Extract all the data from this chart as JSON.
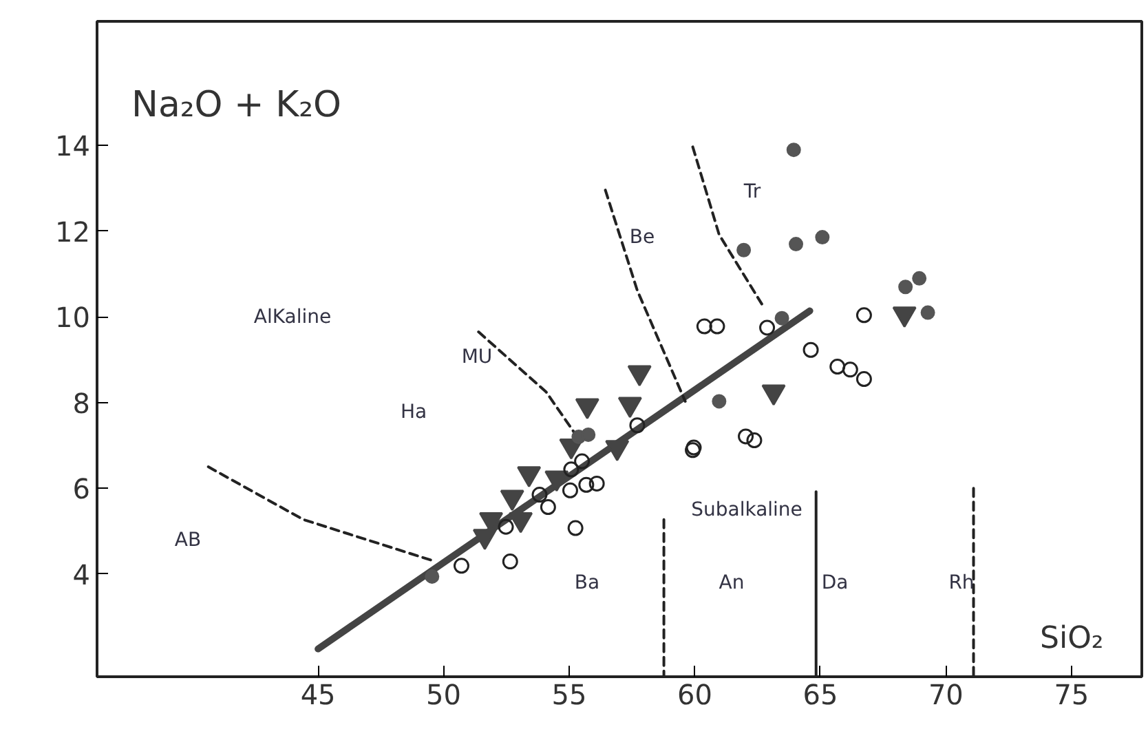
{
  "chart_data": {
    "type": "scatter",
    "xlabel": "SiO₂",
    "ylabel": "Na₂O + K₂O",
    "xlim": [
      36.2,
      77.8
    ],
    "ylim": [
      1.6,
      16.9
    ],
    "xticks": [
      45,
      50,
      55,
      60,
      65,
      70,
      75
    ],
    "yticks": [
      4,
      6,
      8,
      10,
      12,
      14
    ],
    "grid": false,
    "series": [
      {
        "marker": "circle",
        "color": "#555555",
        "x": [
          63.94,
          61.95,
          64.03,
          65.08,
          63.47,
          60.97,
          68.39,
          68.94,
          69.28,
          55.38,
          55.76,
          49.54
        ],
        "values": [
          13.9,
          11.56,
          11.7,
          11.86,
          9.97,
          8.03,
          10.7,
          10.9,
          10.1,
          7.2,
          7.25,
          3.94
        ]
      },
      {
        "marker": "triangle",
        "color": "#444444",
        "x": [
          55.72,
          57.42,
          57.8,
          55.08,
          56.91,
          53.4,
          54.5,
          52.73,
          53.07,
          51.89,
          51.64,
          63.14,
          68.35
        ],
        "values": [
          7.93,
          7.96,
          8.7,
          6.99,
          6.95,
          6.34,
          6.24,
          5.79,
          5.27,
          5.27,
          4.88,
          8.25,
          10.07
        ]
      },
      {
        "marker": "circle_open",
        "color": "#222222",
        "x": [
          57.71,
          59.96,
          55.51,
          55.08,
          55.68,
          56.1,
          55.04,
          53.82,
          54.16,
          52.48,
          55.25,
          50.71,
          52.65,
          60.38,
          60.89,
          62.88,
          66.74,
          64.62,
          65.68,
          66.19,
          62.03,
          62.37,
          59.92,
          66.74
        ],
        "values": [
          7.47,
          6.95,
          6.63,
          6.44,
          6.08,
          6.11,
          5.95,
          5.85,
          5.56,
          5.1,
          5.07,
          4.19,
          4.29,
          9.78,
          9.78,
          9.75,
          10.04,
          9.23,
          8.84,
          8.77,
          7.21,
          7.12,
          6.89,
          8.55
        ]
      },
      {
        "type": "line",
        "line_style": "solid",
        "color": "#444444",
        "x": [
          45.0,
          64.58
        ],
        "values": [
          2.25,
          10.14
        ]
      },
      {
        "type": "line",
        "line_style": "dashed",
        "color": "#222222",
        "x": [
          40.63,
          44.41,
          49.62
        ],
        "values": [
          6.5,
          5.27,
          4.3
        ]
      },
      {
        "type": "line",
        "line_style": "dashed",
        "color": "#222222",
        "x": [
          51.39,
          54.08,
          55.38
        ],
        "values": [
          9.65,
          8.25,
          7.15
        ]
      },
      {
        "type": "line",
        "line_style": "dashed",
        "color": "#222222",
        "x": [
          56.44,
          57.71,
          59.62
        ],
        "values": [
          12.96,
          10.62,
          8.03
        ]
      },
      {
        "type": "line",
        "line_style": "dashed",
        "color": "#222222",
        "x": [
          59.92,
          60.97,
          62.67
        ],
        "values": [
          13.97,
          11.92,
          10.3
        ]
      },
      {
        "type": "line",
        "line_style": "dashed",
        "color": "#222222",
        "x": [
          58.77,
          58.77
        ],
        "values": [
          5.27,
          1.6
        ]
      },
      {
        "type": "line",
        "line_style": "solid",
        "color": "#222222",
        "x": [
          64.83,
          64.83
        ],
        "values": [
          5.92,
          1.6
        ]
      },
      {
        "type": "line",
        "line_style": "dashed",
        "color": "#222222",
        "x": [
          71.1,
          71.1
        ],
        "values": [
          6.0,
          1.6
        ]
      }
    ],
    "annotations": [
      "AlKaline",
      "MU",
      "Ha",
      "AB",
      "Be",
      "Tr",
      "Subalkaline",
      "Ba",
      "An",
      "Da",
      "Rh"
    ]
  }
}
